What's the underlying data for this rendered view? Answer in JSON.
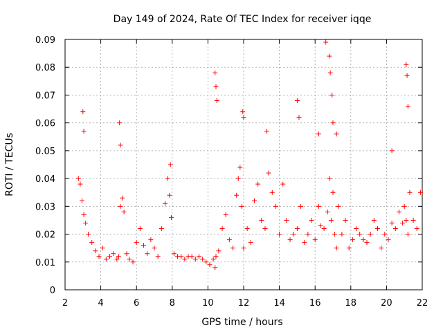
{
  "chart_data": {
    "type": "scatter",
    "title": "Day 149 of 2024, Rate Of TEC Index for receiver iqqe",
    "xlabel": "GPS time / hours",
    "ylabel": "ROTI / TECUs",
    "xlim": [
      2,
      22
    ],
    "ylim": [
      0,
      0.09
    ],
    "x_ticks": [
      "2",
      "4",
      "6",
      "8",
      "10",
      "12",
      "14",
      "16",
      "18",
      "20",
      "22"
    ],
    "y_ticks": [
      "0",
      "0.01",
      "0.02",
      "0.03",
      "0.04",
      "0.05",
      "0.06",
      "0.07",
      "0.08",
      "0.09"
    ],
    "grid": true,
    "marker": "+",
    "color": "#ff0000",
    "series": [
      {
        "name": "ROTI",
        "x": [
          2.75,
          2.85,
          2.95,
          3.05,
          3.15,
          3.3,
          3.5,
          3.7,
          3.9,
          4.1,
          4.3,
          4.5,
          4.7,
          4.9,
          5.0,
          5.1,
          5.2,
          5.3,
          5.45,
          5.6,
          5.8,
          6.0,
          6.2,
          6.4,
          6.6,
          6.8,
          7.0,
          7.2,
          7.4,
          7.6,
          7.75,
          7.85,
          7.95,
          8.1,
          8.3,
          8.5,
          8.7,
          8.9,
          9.1,
          9.3,
          9.5,
          9.7,
          9.9,
          10.1,
          10.3,
          10.4,
          10.45,
          10.6,
          10.8,
          11.0,
          11.2,
          11.4,
          11.6,
          11.7,
          11.8,
          11.9,
          12.0,
          12.2,
          12.4,
          12.6,
          12.8,
          13.0,
          13.2,
          13.4,
          13.6,
          13.8,
          14.0,
          14.2,
          14.4,
          14.6,
          14.8,
          15.0,
          15.2,
          15.4,
          15.6,
          15.8,
          16.0,
          16.2,
          16.3,
          16.5,
          16.7,
          16.8,
          16.9,
          17.0,
          17.1,
          17.2,
          17.3,
          17.5,
          17.7,
          17.9,
          18.1,
          18.3,
          18.5,
          18.7,
          18.9,
          19.1,
          19.3,
          19.5,
          19.7,
          19.9,
          20.1,
          20.3,
          20.5,
          20.7,
          20.9,
          21.0,
          21.1,
          21.2,
          21.3,
          21.5,
          21.7,
          21.9,
          3.0,
          3.05,
          5.05,
          5.1,
          7.9,
          10.4,
          10.45,
          10.5,
          11.95,
          12.0,
          13.3,
          15.0,
          15.1,
          16.2,
          16.6,
          16.8,
          16.85,
          16.95,
          17.0,
          17.2,
          20.3,
          21.1,
          21.15,
          21.2
        ],
        "y": [
          0.04,
          0.038,
          0.032,
          0.027,
          0.024,
          0.02,
          0.017,
          0.014,
          0.012,
          0.015,
          0.011,
          0.012,
          0.013,
          0.011,
          0.012,
          0.03,
          0.033,
          0.028,
          0.013,
          0.011,
          0.01,
          0.017,
          0.022,
          0.016,
          0.013,
          0.018,
          0.015,
          0.012,
          0.022,
          0.031,
          0.04,
          0.034,
          0.026,
          0.013,
          0.012,
          0.012,
          0.011,
          0.012,
          0.012,
          0.011,
          0.012,
          0.011,
          0.01,
          0.009,
          0.011,
          0.008,
          0.012,
          0.014,
          0.022,
          0.027,
          0.018,
          0.015,
          0.034,
          0.04,
          0.044,
          0.03,
          0.015,
          0.022,
          0.017,
          0.032,
          0.038,
          0.025,
          0.022,
          0.042,
          0.035,
          0.03,
          0.02,
          0.038,
          0.025,
          0.018,
          0.02,
          0.022,
          0.03,
          0.017,
          0.02,
          0.025,
          0.018,
          0.03,
          0.023,
          0.022,
          0.028,
          0.04,
          0.025,
          0.035,
          0.02,
          0.015,
          0.03,
          0.02,
          0.025,
          0.015,
          0.018,
          0.022,
          0.02,
          0.018,
          0.017,
          0.02,
          0.025,
          0.022,
          0.015,
          0.02,
          0.018,
          0.024,
          0.022,
          0.028,
          0.024,
          0.03,
          0.025,
          0.02,
          0.035,
          0.025,
          0.022,
          0.035,
          0.064,
          0.057,
          0.06,
          0.052,
          0.045,
          0.078,
          0.073,
          0.068,
          0.064,
          0.062,
          0.057,
          0.068,
          0.062,
          0.056,
          0.089,
          0.084,
          0.078,
          0.07,
          0.06,
          0.056,
          0.05,
          0.081,
          0.077,
          0.066
        ]
      }
    ]
  }
}
